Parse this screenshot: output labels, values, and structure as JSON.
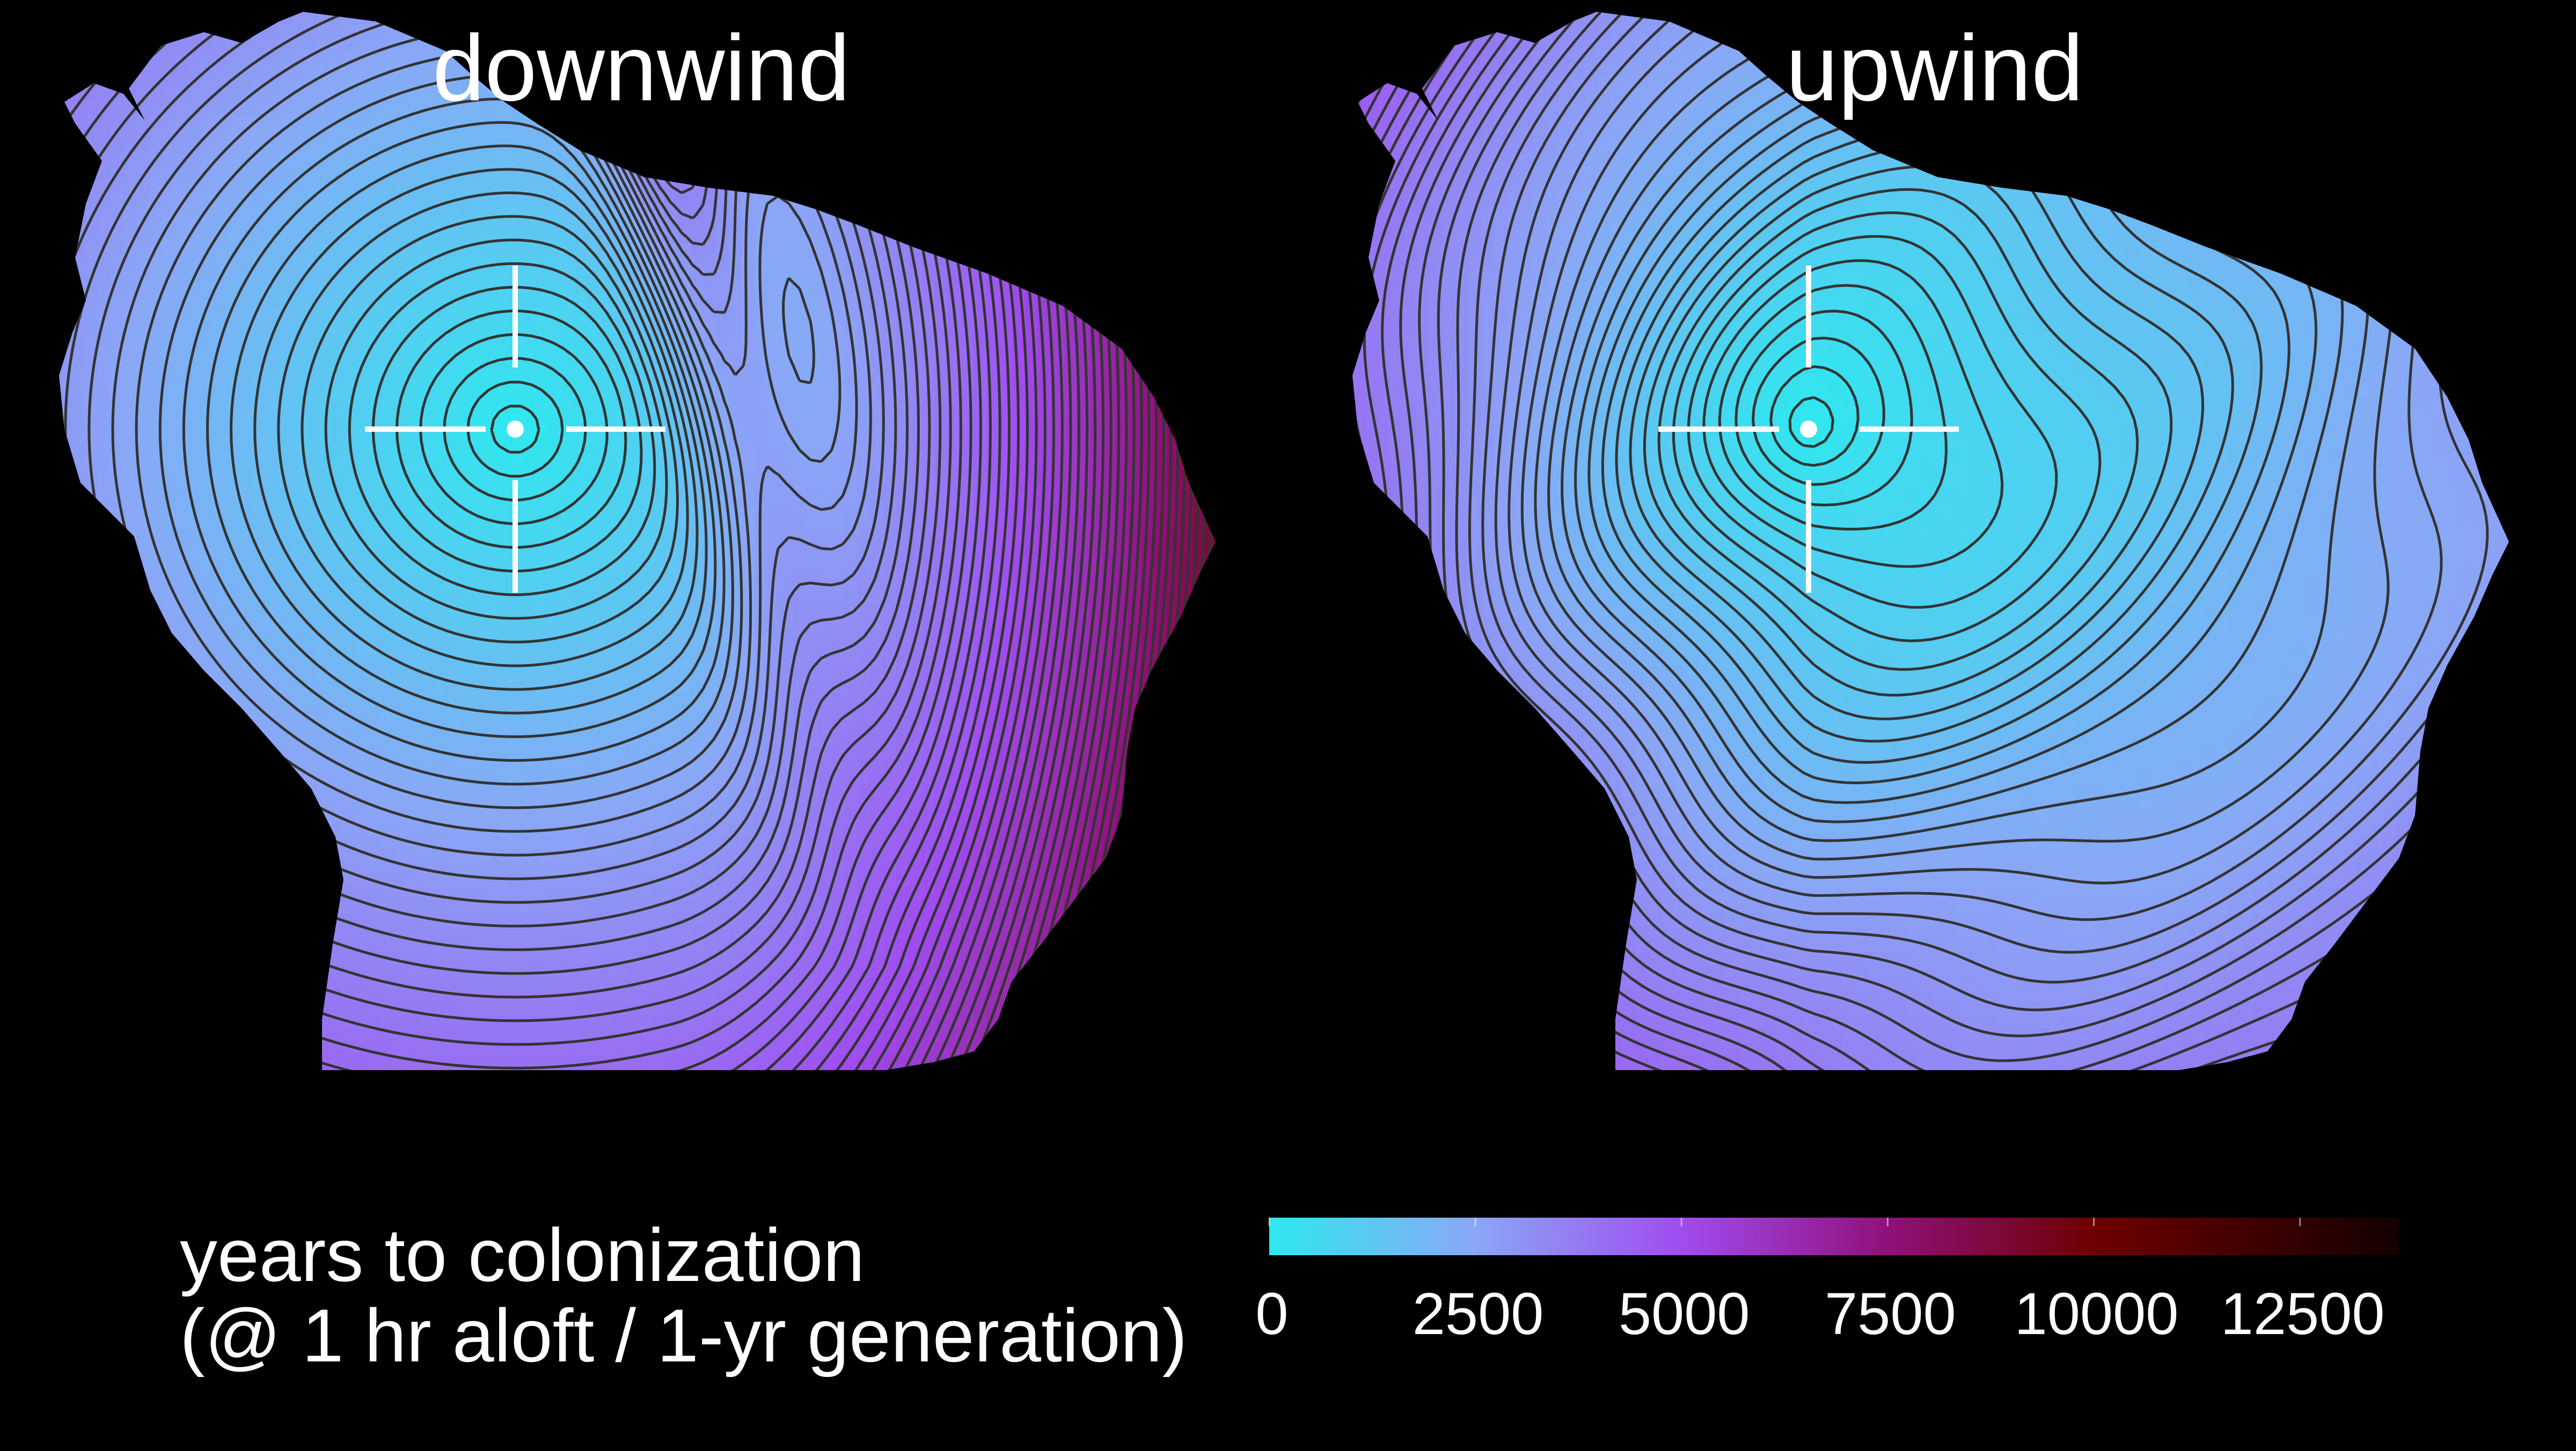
{
  "maps": [
    {
      "title": "downwind",
      "scenario": "downwind"
    },
    {
      "title": "upwind",
      "scenario": "upwind"
    }
  ],
  "legend": {
    "title_line1": "years to colonization",
    "title_line2": "(@ 1 hr aloft / 1-yr generation)",
    "ticks": [
      {
        "label": "0",
        "value": 0
      },
      {
        "label": "2500",
        "value": 2500
      },
      {
        "label": "5000",
        "value": 5000
      },
      {
        "label": "7500",
        "value": 7500
      },
      {
        "label": "10000",
        "value": 10000
      },
      {
        "label": "12500",
        "value": 12500
      }
    ],
    "min": 0,
    "max": 13700,
    "colors": [
      {
        "value": 0,
        "color": "#2ee8ee"
      },
      {
        "value": 2500,
        "color": "#8aa7f6"
      },
      {
        "value": 5000,
        "color": "#a04cf0"
      },
      {
        "value": 7500,
        "color": "#90107a"
      },
      {
        "value": 10000,
        "color": "#6e0000"
      },
      {
        "value": 13700,
        "color": "#140000"
      }
    ]
  },
  "style": {
    "background": "#000000",
    "contour_color": "#333333",
    "crosshair_color": "#ffffff"
  }
}
